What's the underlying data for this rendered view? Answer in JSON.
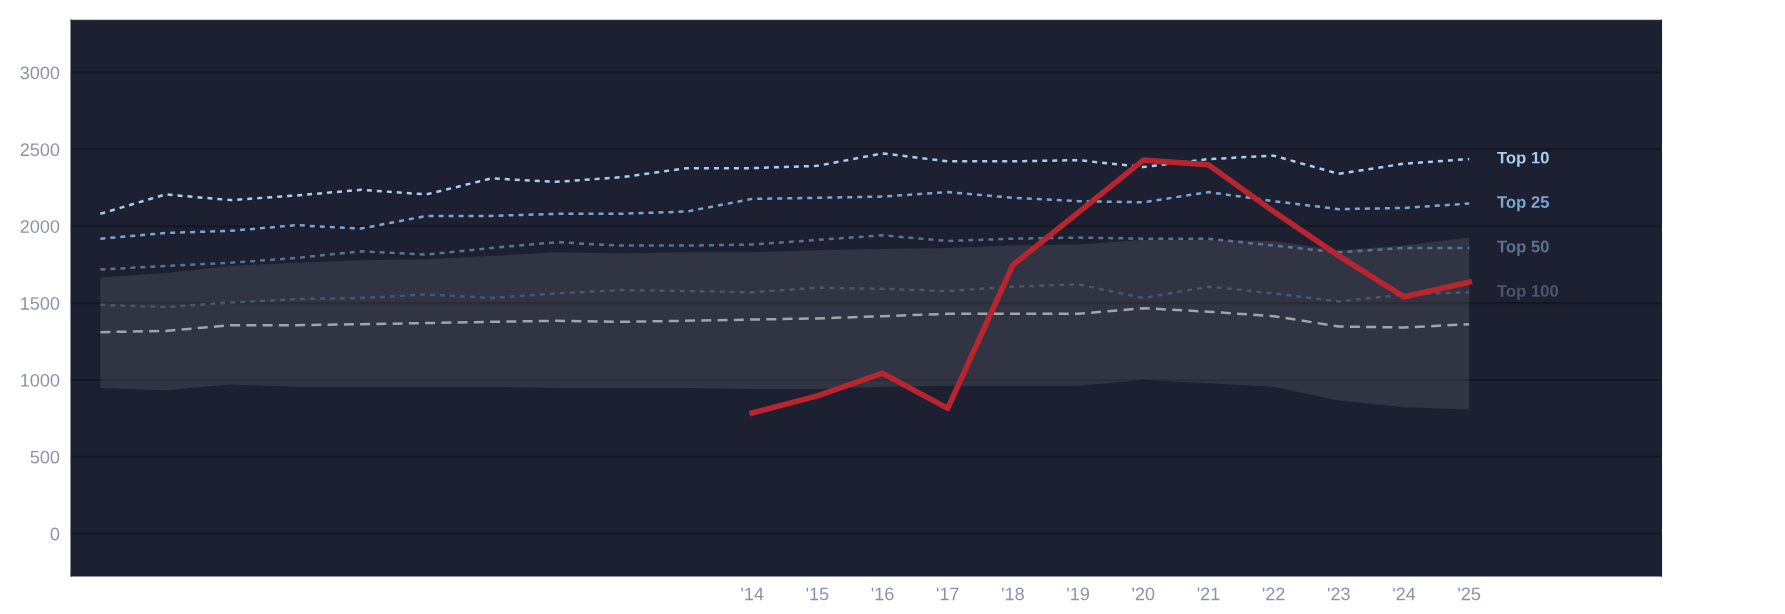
{
  "chart_data": {
    "type": "line",
    "categories": [
      null,
      null,
      null,
      null,
      null,
      null,
      null,
      null,
      null,
      null,
      "'14",
      "'15",
      "'16",
      "'17",
      "'18",
      "'19",
      "'20",
      "'21",
      "'22",
      "'23",
      "'24",
      "'25"
    ],
    "series": [
      {
        "name": "Top 10",
        "color": "#a8cff0",
        "line_style": "dotted",
        "values": [
          2081,
          2207,
          2170,
          2200,
          2237,
          2207,
          2311,
          2289,
          2319,
          2378,
          2378,
          2393,
          2474,
          2422,
          2422,
          2430,
          2385,
          2437,
          2459,
          2341,
          2407,
          2437
        ]
      },
      {
        "name": "Top 25",
        "color": "#7aa6d0",
        "line_style": "dotted",
        "values": [
          1919,
          1956,
          1970,
          2007,
          1985,
          2067,
          2067,
          2081,
          2081,
          2096,
          2178,
          2185,
          2193,
          2222,
          2185,
          2163,
          2156,
          2222,
          2163,
          2111,
          2119,
          2148
        ]
      },
      {
        "name": "Top 50",
        "color": "#5e7290",
        "line_style": "dotted",
        "values": [
          1719,
          1741,
          1763,
          1793,
          1837,
          1815,
          1859,
          1896,
          1874,
          1874,
          1881,
          1911,
          1941,
          1904,
          1919,
          1926,
          1919,
          1919,
          1874,
          1830,
          1859,
          1859
        ]
      },
      {
        "name": "Top 100",
        "color": "#4a566c",
        "line_style": "dotted",
        "values": [
          1489,
          1474,
          1504,
          1526,
          1533,
          1556,
          1533,
          1563,
          1585,
          1578,
          1570,
          1600,
          1593,
          1578,
          1607,
          1622,
          1533,
          1607,
          1563,
          1511,
          1556,
          1570
        ]
      },
      {
        "color": "#a0a4ab",
        "line_style": "dashed",
        "values": [
          1311,
          1319,
          1356,
          1356,
          1363,
          1370,
          1378,
          1385,
          1378,
          1385,
          1393,
          1400,
          1415,
          1430,
          1430,
          1430,
          1467,
          1444,
          1415,
          1348,
          1341,
          1363
        ],
        "lower": [
          948,
          933,
          970,
          956,
          956,
          956,
          956,
          948,
          948,
          948,
          941,
          941,
          956,
          963,
          963,
          963,
          1000,
          978,
          956,
          867,
          822,
          807
        ],
        "upper": [
          1667,
          1696,
          1741,
          1763,
          1778,
          1785,
          1807,
          1830,
          1822,
          1830,
          1830,
          1844,
          1852,
          1859,
          1874,
          1881,
          1911,
          1911,
          1904,
          1844,
          1874,
          1926
        ]
      },
      {
        "color": "#b8252f",
        "line_style": "solid",
        "values": [
          null,
          null,
          null,
          null,
          null,
          null,
          null,
          null,
          null,
          null,
          785,
          896,
          1044,
          815,
          1748,
          2089,
          2430,
          2400,
          2096,
          1807,
          1541,
          1637
        ]
      }
    ],
    "ylim": [
      -275,
      3340
    ],
    "yticks": [
      0,
      500,
      1000,
      1500,
      2000,
      2500,
      3000
    ],
    "grid": "y",
    "legend": false,
    "marker": "none"
  }
}
